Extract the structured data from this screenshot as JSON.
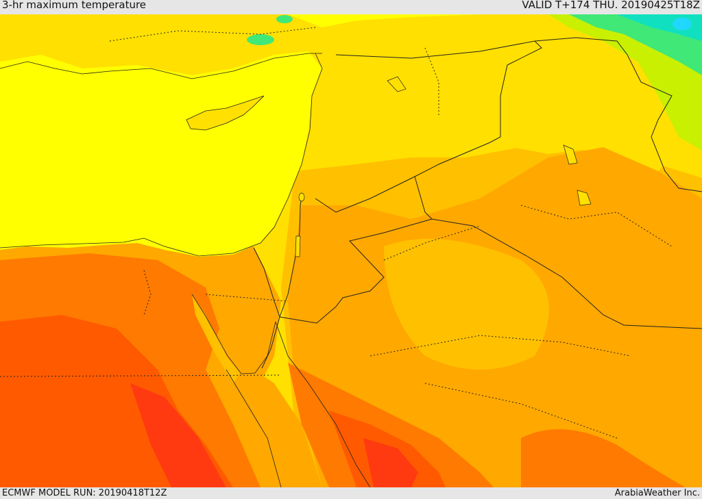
{
  "header": {
    "title": "3-hr maximum temperature",
    "valid": "VALID T+174 THU. 20190425T18Z"
  },
  "footer": {
    "model_run": "ECMWF MODEL RUN: 20190418T12Z",
    "credit": "ArabiaWeather Inc."
  },
  "map": {
    "region": "Eastern Mediterranean, Levant, Egypt and northern Arabia",
    "palette": {
      "sea": "#ffff00",
      "warm": "#ffe000",
      "hot": "#ffc000",
      "very_hot": "#ffa800",
      "extreme": "#ff7a00",
      "extreme_2": "#ff5a00",
      "extreme_3": "#ff3a10",
      "cool": "#c8f000",
      "cooler": "#40e878",
      "coldest": "#10e0c0",
      "border": "#222222"
    }
  }
}
